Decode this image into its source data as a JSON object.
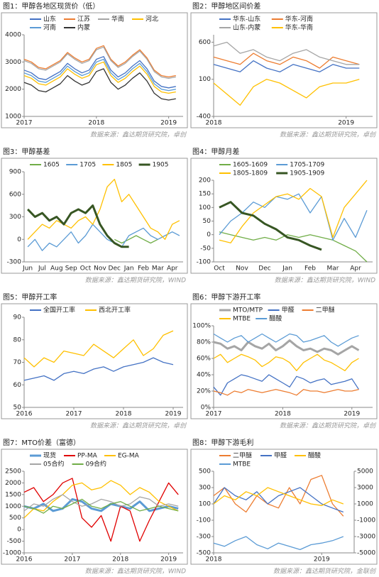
{
  "chart_data": [
    {
      "type": "line",
      "title": "图1：甲醇各地区现货价（低）",
      "source": "数据来源：鑫达期货研究院，卓创",
      "x": [
        2017,
        2017.1,
        2017.2,
        2017.3,
        2017.4,
        2017.5,
        2017.6,
        2017.7,
        2017.8,
        2017.9,
        2018,
        2018.1,
        2018.2,
        2018.3,
        2018.4,
        2018.5,
        2018.6,
        2018.7,
        2018.8,
        2018.9,
        2019,
        2019.1
      ],
      "xlim": [
        2017,
        2019.2
      ],
      "xticks": [
        2017,
        2018,
        2019
      ],
      "ylim": [
        1000,
        4000
      ],
      "yticks": [
        1000,
        2000,
        3000,
        4000
      ],
      "series": [
        {
          "name": "山东",
          "color": "#4472c4",
          "values": [
            2700,
            2600,
            2400,
            2350,
            2500,
            2650,
            2950,
            2750,
            2600,
            2700,
            3100,
            3200,
            2700,
            2450,
            2600,
            2850,
            3050,
            2750,
            2300,
            2100,
            2050,
            2100
          ]
        },
        {
          "name": "江苏",
          "color": "#ed7d31",
          "values": [
            3100,
            3000,
            2800,
            2750,
            2900,
            3050,
            3350,
            3150,
            3000,
            3100,
            3500,
            3600,
            3100,
            2850,
            3000,
            3250,
            3450,
            3150,
            2700,
            2500,
            2450,
            2500
          ]
        },
        {
          "name": "华南",
          "color": "#a5a5a5",
          "values": [
            3050,
            2950,
            2750,
            2700,
            2850,
            3000,
            3300,
            3100,
            2950,
            3050,
            3450,
            3550,
            3050,
            2800,
            2950,
            3200,
            3400,
            3100,
            2650,
            2450,
            2400,
            2450
          ]
        },
        {
          "name": "河北",
          "color": "#ffc000",
          "values": [
            2500,
            2400,
            2200,
            2150,
            2300,
            2450,
            2750,
            2550,
            2400,
            2500,
            2900,
            3000,
            2500,
            2250,
            2400,
            2650,
            2850,
            2550,
            2100,
            1900,
            1850,
            1900
          ]
        },
        {
          "name": "河南",
          "color": "#5b9bd5",
          "values": [
            2600,
            2500,
            2300,
            2250,
            2400,
            2550,
            2850,
            2650,
            2500,
            2600,
            3000,
            3100,
            2600,
            2350,
            2500,
            2750,
            2950,
            2650,
            2200,
            2000,
            1950,
            2000
          ]
        },
        {
          "name": "内蒙",
          "color": "#333333",
          "values": [
            2250,
            2150,
            1950,
            1900,
            2050,
            2200,
            2500,
            2300,
            2150,
            2250,
            2650,
            2750,
            2250,
            2000,
            2150,
            2400,
            2600,
            2300,
            1850,
            1650,
            1600,
            1650
          ]
        }
      ]
    },
    {
      "type": "line",
      "title": "图2：甲醇地区间价差",
      "source": "数据来源：鑫达期货研究院，卓创",
      "x": [
        2018,
        2018.1,
        2018.2,
        2018.3,
        2018.4,
        2018.5,
        2018.6,
        2018.7,
        2018.8,
        2018.9,
        2019,
        2019.1
      ],
      "xlim": [
        2018,
        2019.2
      ],
      "xticks": [
        2018,
        2019
      ],
      "ylim": [
        -400,
        700
      ],
      "yticks": [
        -400,
        100,
        600
      ],
      "series": [
        {
          "name": "华东-山东",
          "color": "#4472c4",
          "values": [
            300,
            250,
            200,
            350,
            250,
            200,
            300,
            250,
            200,
            300,
            250,
            250
          ]
        },
        {
          "name": "华东-河南",
          "color": "#ed7d31",
          "values": [
            400,
            350,
            300,
            450,
            350,
            300,
            400,
            350,
            250,
            400,
            350,
            300
          ]
        },
        {
          "name": "山东-内蒙",
          "color": "#a5a5a5",
          "values": [
            550,
            600,
            450,
            500,
            400,
            350,
            450,
            500,
            400,
            350,
            300,
            300
          ]
        },
        {
          "name": "华东-华南",
          "color": "#ffc000",
          "values": [
            50,
            -100,
            -250,
            0,
            100,
            50,
            -50,
            -150,
            0,
            50,
            50,
            100
          ]
        }
      ]
    },
    {
      "type": "line",
      "title": "图3：甲醇基差",
      "source": "数据来源：鑫达期货研究院，WIND",
      "categories": [
        "Jun",
        null,
        "Jul",
        null,
        "Aug",
        null,
        "Sep",
        null,
        "Oct",
        null,
        "Nov",
        null,
        "Dec",
        null,
        "Jan",
        null,
        "Feb",
        null,
        "Mar",
        null,
        "Apr",
        null
      ],
      "ylim": [
        -300,
        900
      ],
      "yticks": [
        -300,
        0,
        300,
        600,
        900
      ],
      "series": [
        {
          "name": "1605",
          "color": "#70ad47",
          "values": [
            null,
            null,
            null,
            null,
            null,
            null,
            null,
            null,
            null,
            null,
            null,
            null,
            0,
            -50,
            0,
            50,
            0,
            -50,
            0,
            null,
            null,
            null
          ]
        },
        {
          "name": "1705",
          "color": "#5b9bd5",
          "values": [
            -100,
            0,
            -150,
            -50,
            -100,
            0,
            100,
            -50,
            50,
            200,
            100,
            0,
            -50,
            -100,
            50,
            100,
            150,
            50,
            0,
            50,
            100,
            50
          ]
        },
        {
          "name": "1805",
          "color": "#ffc000",
          "values": [
            0,
            100,
            200,
            150,
            250,
            200,
            150,
            250,
            300,
            200,
            400,
            700,
            800,
            500,
            600,
            450,
            300,
            150,
            100,
            0,
            200,
            250
          ]
        },
        {
          "name": "1905",
          "color": "#375623",
          "width": 3,
          "values": [
            400,
            300,
            350,
            250,
            300,
            200,
            350,
            400,
            350,
            450,
            200,
            50,
            -50,
            -100,
            -100,
            null,
            null,
            null,
            null,
            null,
            null,
            null
          ]
        }
      ]
    },
    {
      "type": "line",
      "title": "图4：甲醇月差",
      "source": "数据来源：鑫达期货研究院，WIND",
      "categories": [
        "Oct",
        null,
        "Nov",
        null,
        "Dec",
        null,
        "Jan",
        null,
        "Feb",
        null,
        "Mar",
        null,
        "Apr",
        null
      ],
      "ylim": [
        -100,
        200
      ],
      "yticks": [
        -100,
        -50,
        0,
        50,
        100,
        150,
        200
      ],
      "series": [
        {
          "name": "1605-1609",
          "color": "#70ad47",
          "values": [
            10,
            0,
            -10,
            -20,
            -10,
            -20,
            0,
            -10,
            0,
            -10,
            -20,
            -40,
            -60,
            -100
          ]
        },
        {
          "name": "1705-1709",
          "color": "#5b9bd5",
          "values": [
            0,
            50,
            80,
            120,
            100,
            140,
            130,
            150,
            80,
            140,
            -20,
            60,
            -10,
            90
          ]
        },
        {
          "name": "1805-1809",
          "color": "#ffc000",
          "values": [
            -20,
            -30,
            30,
            80,
            110,
            140,
            150,
            130,
            170,
            140,
            -10,
            100,
            150,
            200
          ]
        },
        {
          "name": "1905-1909",
          "color": "#375623",
          "width": 3,
          "values": [
            100,
            120,
            80,
            70,
            40,
            20,
            -10,
            -20,
            -40,
            -55,
            null,
            null,
            null,
            null
          ]
        }
      ]
    },
    {
      "type": "line",
      "title": "图5：甲醇开工率",
      "source": "数据来源：鑫达期货研究院，卓创",
      "x": [
        2016,
        2016.2,
        2016.4,
        2016.6,
        2016.8,
        2017,
        2017.2,
        2017.4,
        2017.6,
        2017.8,
        2018,
        2018.2,
        2018.4,
        2018.6,
        2018.8,
        2019
      ],
      "xlim": [
        2016,
        2019.2
      ],
      "xticks": [
        2016,
        2017,
        2018,
        2019
      ],
      "ylim": [
        50,
        90
      ],
      "yticks": [
        50,
        60,
        70,
        80,
        90
      ],
      "series": [
        {
          "name": "全国开工率",
          "color": "#4472c4",
          "values": [
            62,
            63,
            64,
            62,
            65,
            66,
            65,
            67,
            68,
            66,
            68,
            69,
            70,
            72,
            70,
            69
          ]
        },
        {
          "name": "西北开工率",
          "color": "#ffc000",
          "values": [
            72,
            68,
            72,
            70,
            75,
            74,
            73,
            78,
            75,
            72,
            76,
            80,
            73,
            76,
            82,
            84
          ]
        }
      ]
    },
    {
      "type": "line",
      "title": "图6：甲醇下游开工率",
      "source": "数据来源：鑫达期货研究院，卓创",
      "x": [
        2017,
        2017.1,
        2017.2,
        2017.3,
        2017.4,
        2017.5,
        2017.6,
        2017.7,
        2017.8,
        2017.9,
        2018,
        2018.1,
        2018.2,
        2018.3,
        2018.4,
        2018.5,
        2018.6,
        2018.7,
        2018.8,
        2018.9,
        2019,
        2019.1
      ],
      "xlim": [
        2017,
        2019.3
      ],
      "xticks": [
        2017,
        2018,
        2019
      ],
      "ylim": [
        0,
        100
      ],
      "yticks": [
        {
          "value": 0,
          "label": "0%"
        },
        {
          "value": 20,
          "label": "20%"
        },
        {
          "value": 40,
          "label": "40%"
        },
        {
          "value": 60,
          "label": "60%"
        },
        {
          "value": 80,
          "label": "80%"
        },
        {
          "value": 100,
          "label": "100%"
        }
      ],
      "series": [
        {
          "name": "MTO/MTP",
          "color": "#a5a5a5",
          "width": 3,
          "values": [
            80,
            78,
            72,
            75,
            70,
            80,
            75,
            72,
            78,
            70,
            75,
            82,
            75,
            70,
            72,
            68,
            72,
            70,
            65,
            70,
            75,
            70
          ]
        },
        {
          "name": "甲醛",
          "color": "#4472c4",
          "values": [
            25,
            15,
            30,
            35,
            40,
            38,
            35,
            32,
            40,
            35,
            30,
            25,
            38,
            35,
            30,
            33,
            35,
            28,
            30,
            32,
            35,
            22
          ]
        },
        {
          "name": "二甲醚",
          "color": "#ed7d31",
          "values": [
            20,
            18,
            15,
            20,
            18,
            22,
            20,
            18,
            20,
            22,
            20,
            18,
            15,
            22,
            20,
            20,
            18,
            20,
            22,
            20,
            20,
            22
          ]
        },
        {
          "name": "MTBE",
          "color": "#ffc000",
          "values": [
            60,
            65,
            55,
            60,
            65,
            62,
            58,
            50,
            55,
            62,
            60,
            55,
            45,
            55,
            60,
            65,
            58,
            55,
            50,
            45,
            55,
            60
          ]
        },
        {
          "name": "醋酸",
          "color": "#5b9bd5",
          "values": [
            90,
            85,
            80,
            85,
            88,
            80,
            85,
            90,
            85,
            80,
            85,
            90,
            88,
            80,
            82,
            85,
            88,
            80,
            75,
            80,
            85,
            88
          ]
        }
      ]
    },
    {
      "type": "line",
      "title": "图7：MTO价差（富德）",
      "source": "数据来源：鑫达期货研究院，WIND",
      "x": [
        2016,
        2016.2,
        2016.4,
        2016.6,
        2016.8,
        2017,
        2017.2,
        2017.4,
        2017.6,
        2017.8,
        2018,
        2018.2,
        2018.4,
        2018.6,
        2018.8,
        2019,
        2019.2
      ],
      "xlim": [
        2016,
        2019.3
      ],
      "xticks": [
        2016,
        2017,
        2018,
        2019
      ],
      "ylim": [
        -1000,
        2500
      ],
      "yticks": [
        -1000,
        -500,
        0,
        500,
        1000,
        1500,
        2000,
        2500
      ],
      "series": [
        {
          "name": "现货",
          "color": "#5b9bd5",
          "width": 3,
          "values": [
            1000,
            900,
            1100,
            800,
            900,
            1300,
            1200,
            900,
            800,
            1100,
            1000,
            900,
            1200,
            800,
            900,
            1000,
            900
          ]
        },
        {
          "name": "PP-MA",
          "color": "#e00000",
          "values": [
            1600,
            1800,
            1200,
            1500,
            2000,
            2200,
            500,
            100,
            600,
            -500,
            1000,
            800,
            -500,
            400,
            1200,
            2000,
            1500
          ]
        },
        {
          "name": "EG-MA",
          "color": "#ffc000",
          "values": [
            500,
            900,
            800,
            1200,
            1500,
            1900,
            2000,
            1700,
            1800,
            2100,
            1900,
            1500,
            1800,
            1600,
            1200,
            1000,
            800
          ]
        },
        {
          "name": "05合约",
          "color": "#a5a5a5",
          "values": [
            800,
            1100,
            1000,
            1300,
            1500,
            1200,
            1000,
            1100,
            1300,
            1200,
            1000,
            1100,
            1400,
            1300,
            1000,
            1100,
            1000
          ]
        },
        {
          "name": "09合约",
          "color": "#70ad47",
          "values": [
            1000,
            900,
            700,
            1000,
            900,
            1100,
            1300,
            1000,
            900,
            1100,
            1200,
            1000,
            800,
            900,
            1000,
            900,
            800
          ]
        }
      ]
    },
    {
      "type": "line",
      "title": "图8：甲醇下游毛利",
      "source": "数据来源：鑫达期货研究院，金联创",
      "x": [
        2018,
        2018.1,
        2018.2,
        2018.3,
        2018.4,
        2018.5,
        2018.6,
        2018.7,
        2018.8,
        2018.9,
        2019,
        2019.1,
        2019.2
      ],
      "xlim": [
        2018,
        2019.3
      ],
      "xticks": [
        2018,
        2019
      ],
      "ylim": [
        -500,
        500
      ],
      "yticks": [
        -500,
        -300,
        -100,
        100,
        300,
        500
      ],
      "y2lim": [
        -5000,
        5000
      ],
      "y2ticks": [
        -5000,
        -3000,
        -1000,
        1000,
        3000,
        5000
      ],
      "series": [
        {
          "name": "二甲醚",
          "color": "#ed7d31",
          "values": [
            200,
            300,
            100,
            0,
            200,
            100,
            50,
            300,
            100,
            400,
            450,
            100,
            -50
          ]
        },
        {
          "name": "甲醛",
          "color": "#4472c4",
          "values": [
            100,
            300,
            200,
            150,
            250,
            100,
            200,
            250,
            300,
            200,
            100,
            50,
            0
          ]
        },
        {
          "name": "醋酸",
          "color": "#ffc000",
          "axis": "y2",
          "values": [
            1000,
            2000,
            1500,
            2500,
            2000,
            3000,
            2500,
            2000,
            1500,
            1000,
            800,
            1500,
            1000
          ]
        },
        {
          "name": "MTBE",
          "color": "#5b9bd5",
          "values": [
            -380,
            -420,
            -350,
            -300,
            -400,
            -450,
            -380,
            -420,
            -460,
            -400,
            -380,
            -350,
            -300
          ]
        }
      ]
    }
  ]
}
